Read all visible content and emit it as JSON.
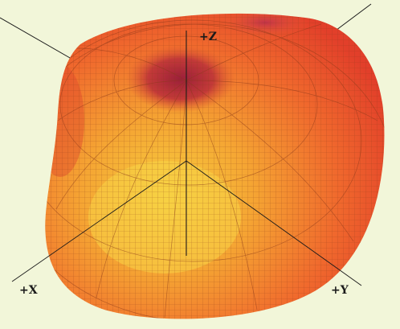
{
  "axes": {
    "z": {
      "label": "+Z"
    },
    "x": {
      "label": "+X"
    },
    "y": {
      "label": "+Y"
    }
  },
  "colors": {
    "background": "#f2f6d9",
    "surface_outer": "#e8412b",
    "surface_mid": "#f5892f",
    "surface_highlight": "#f6cf3f",
    "null_region": "#a8243a",
    "grid_line": "#8b3a1a",
    "axis_line": "#1a1a1a"
  }
}
